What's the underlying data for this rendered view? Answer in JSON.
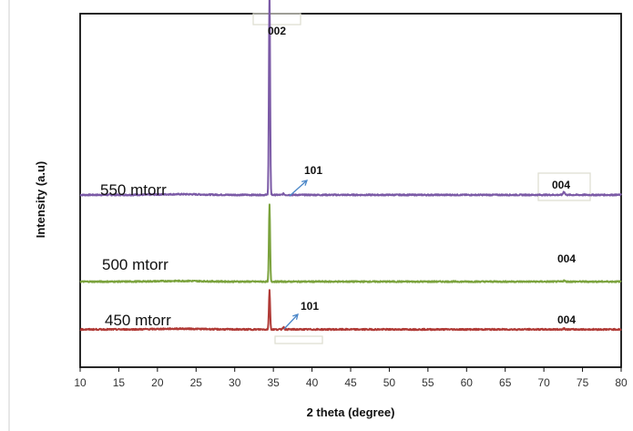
{
  "chart_data": {
    "type": "line",
    "title": "",
    "xlabel": "2 theta (degree)",
    "ylabel": "Intensity (a.u)",
    "xlim": [
      10,
      80
    ],
    "xticks": [
      10,
      15,
      20,
      25,
      30,
      35,
      40,
      45,
      50,
      55,
      60,
      65,
      70,
      75,
      80
    ],
    "grid": false,
    "legend": "none",
    "series": [
      {
        "name": "550 mtorr",
        "color": "#7b5aa6",
        "baseline": 1.55,
        "peaks": [
          {
            "x": 34.5,
            "height": 1.85,
            "label": "002"
          },
          {
            "x": 36.3,
            "height": 0.01,
            "label": "101"
          },
          {
            "x": 72.6,
            "height": 0.03,
            "label": "004"
          }
        ]
      },
      {
        "name": "500 mtorr",
        "color": "#7aa23c",
        "baseline": 0.77,
        "peaks": [
          {
            "x": 34.5,
            "height": 0.69
          },
          {
            "x": 72.6,
            "height": 0.01,
            "label": "004"
          }
        ]
      },
      {
        "name": "450  mtorr",
        "color": "#b03a36",
        "baseline": 0.34,
        "peaks": [
          {
            "x": 34.5,
            "height": 0.35
          },
          {
            "x": 36.3,
            "height": 0.02,
            "label": "101"
          },
          {
            "x": 72.6,
            "height": 0.01,
            "label": "004"
          }
        ]
      }
    ]
  }
}
